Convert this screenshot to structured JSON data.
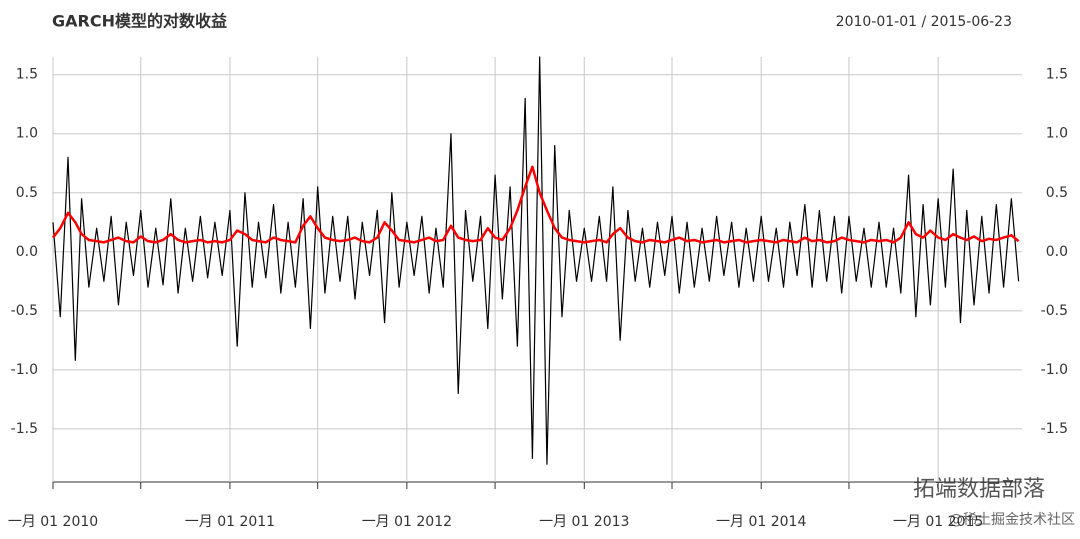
{
  "chart_data": {
    "type": "line",
    "title": "GARCH模型的对数收益",
    "subtitle": "2010-01-01 / 2015-06-23",
    "annotations": [
      "拓端数据部落",
      "@稀土掘金技术社区"
    ],
    "xlim": [
      "2010-01-01",
      "2015-06-23"
    ],
    "xticks": [
      {
        "value": "2010-01-01",
        "label": "一月 01 2010"
      },
      {
        "value": "2010-07-01",
        "label": null
      },
      {
        "value": "2011-01-01",
        "label": "一月 01 2011"
      },
      {
        "value": "2011-07-01",
        "label": null
      },
      {
        "value": "2012-01-01",
        "label": "一月 01 2012"
      },
      {
        "value": "2012-07-01",
        "label": null
      },
      {
        "value": "2013-01-01",
        "label": "一月 01 2013"
      },
      {
        "value": "2013-07-01",
        "label": null
      },
      {
        "value": "2014-01-01",
        "label": "一月 01 2014"
      },
      {
        "value": "2014-07-01",
        "label": null
      },
      {
        "value": "2015-01-01",
        "label": "一月 01 2015"
      }
    ],
    "ylim": [
      -1.95,
      1.65
    ],
    "yticks": [
      1.5,
      {
        "value": 1,
        "label": "1.0"
      },
      0.5,
      {
        "value": 0,
        "label": "0.0"
      },
      -0.5,
      {
        "value": -1,
        "label": "-1.0"
      },
      -1.5
    ],
    "grid": true,
    "x": [
      "2010-01-01",
      "2010-01-16",
      "2010-02-01",
      "2010-02-16",
      "2010-03-01",
      "2010-03-16",
      "2010-04-01",
      "2010-04-16",
      "2010-05-01",
      "2010-05-16",
      "2010-06-01",
      "2010-06-16",
      "2010-07-01",
      "2010-07-16",
      "2010-08-01",
      "2010-08-16",
      "2010-09-01",
      "2010-09-16",
      "2010-10-01",
      "2010-10-16",
      "2010-11-01",
      "2010-11-16",
      "2010-12-01",
      "2010-12-16",
      "2011-01-01",
      "2011-01-16",
      "2011-02-01",
      "2011-02-16",
      "2011-03-01",
      "2011-03-16",
      "2011-04-01",
      "2011-04-16",
      "2011-05-01",
      "2011-05-16",
      "2011-06-01",
      "2011-06-16",
      "2011-07-01",
      "2011-07-16",
      "2011-08-01",
      "2011-08-16",
      "2011-09-01",
      "2011-09-16",
      "2011-10-01",
      "2011-10-16",
      "2011-11-01",
      "2011-11-16",
      "2011-12-01",
      "2011-12-16",
      "2012-01-01",
      "2012-01-16",
      "2012-02-01",
      "2012-02-16",
      "2012-03-01",
      "2012-03-16",
      "2012-04-01",
      "2012-04-16",
      "2012-05-01",
      "2012-05-16",
      "2012-06-01",
      "2012-06-16",
      "2012-07-01",
      "2012-07-16",
      "2012-08-01",
      "2012-08-16",
      "2012-09-01",
      "2012-09-16",
      "2012-10-01",
      "2012-10-16",
      "2012-11-01",
      "2012-11-16",
      "2012-12-01",
      "2012-12-16",
      "2013-01-01",
      "2013-01-16",
      "2013-02-01",
      "2013-02-16",
      "2013-03-01",
      "2013-03-16",
      "2013-04-01",
      "2013-04-16",
      "2013-05-01",
      "2013-05-16",
      "2013-06-01",
      "2013-06-16",
      "2013-07-01",
      "2013-07-16",
      "2013-08-01",
      "2013-08-16",
      "2013-09-01",
      "2013-09-16",
      "2013-10-01",
      "2013-10-16",
      "2013-11-01",
      "2013-11-16",
      "2013-12-01",
      "2013-12-16",
      "2014-01-01",
      "2014-01-16",
      "2014-02-01",
      "2014-02-16",
      "2014-03-01",
      "2014-03-16",
      "2014-04-01",
      "2014-04-16",
      "2014-05-01",
      "2014-05-16",
      "2014-06-01",
      "2014-06-16",
      "2014-07-01",
      "2014-07-16",
      "2014-08-01",
      "2014-08-16",
      "2014-09-01",
      "2014-09-16",
      "2014-10-01",
      "2014-10-16",
      "2014-11-01",
      "2014-11-16",
      "2014-12-01",
      "2014-12-16",
      "2015-01-01",
      "2015-01-16",
      "2015-02-01",
      "2015-02-16",
      "2015-03-01",
      "2015-03-16",
      "2015-04-01",
      "2015-04-16",
      "2015-05-01",
      "2015-05-16",
      "2015-06-01",
      "2015-06-16"
    ],
    "series": [
      {
        "color": "#000000",
        "width": 1.2,
        "values": [
          0.25,
          -0.55,
          0.8,
          -0.92,
          0.45,
          -0.3,
          0.2,
          -0.25,
          0.3,
          -0.45,
          0.25,
          -0.2,
          0.35,
          -0.3,
          0.2,
          -0.28,
          0.45,
          -0.35,
          0.2,
          -0.25,
          0.3,
          -0.22,
          0.25,
          -0.2,
          0.35,
          -0.8,
          0.5,
          -0.3,
          0.25,
          -0.22,
          0.4,
          -0.35,
          0.25,
          -0.3,
          0.45,
          -0.65,
          0.55,
          -0.35,
          0.3,
          -0.25,
          0.3,
          -0.4,
          0.25,
          -0.2,
          0.35,
          -0.6,
          0.5,
          -0.3,
          0.25,
          -0.2,
          0.3,
          -0.35,
          0.2,
          -0.3,
          1.0,
          -1.2,
          0.35,
          -0.25,
          0.3,
          -0.65,
          0.65,
          -0.4,
          0.55,
          -0.8,
          1.3,
          -1.75,
          1.65,
          -1.8,
          0.9,
          -0.55,
          0.35,
          -0.25,
          0.2,
          -0.25,
          0.3,
          -0.25,
          0.55,
          -0.75,
          0.35,
          -0.25,
          0.2,
          -0.3,
          0.25,
          -0.2,
          0.3,
          -0.35,
          0.25,
          -0.3,
          0.2,
          -0.25,
          0.3,
          -0.2,
          0.25,
          -0.3,
          0.2,
          -0.25,
          0.3,
          -0.25,
          0.2,
          -0.3,
          0.25,
          -0.2,
          0.4,
          -0.3,
          0.35,
          -0.25,
          0.3,
          -0.35,
          0.3,
          -0.25,
          0.2,
          -0.3,
          0.25,
          -0.3,
          0.2,
          -0.35,
          0.65,
          -0.55,
          0.4,
          -0.45,
          0.45,
          -0.3,
          0.7,
          -0.6,
          0.35,
          -0.45,
          0.3,
          -0.35,
          0.4,
          -0.3,
          0.45,
          -0.25
        ]
      },
      {
        "color": "#ff0000",
        "width": 2.5,
        "values": [
          0.12,
          0.2,
          0.33,
          0.25,
          0.15,
          0.1,
          0.09,
          0.08,
          0.1,
          0.12,
          0.09,
          0.08,
          0.13,
          0.09,
          0.08,
          0.1,
          0.15,
          0.1,
          0.08,
          0.09,
          0.1,
          0.08,
          0.09,
          0.08,
          0.1,
          0.18,
          0.15,
          0.1,
          0.09,
          0.08,
          0.12,
          0.1,
          0.09,
          0.08,
          0.22,
          0.3,
          0.2,
          0.12,
          0.1,
          0.09,
          0.1,
          0.12,
          0.09,
          0.08,
          0.12,
          0.25,
          0.18,
          0.1,
          0.09,
          0.08,
          0.1,
          0.12,
          0.09,
          0.1,
          0.22,
          0.12,
          0.1,
          0.09,
          0.1,
          0.2,
          0.12,
          0.1,
          0.2,
          0.35,
          0.55,
          0.72,
          0.5,
          0.35,
          0.2,
          0.12,
          0.1,
          0.09,
          0.08,
          0.09,
          0.1,
          0.08,
          0.15,
          0.2,
          0.12,
          0.09,
          0.08,
          0.1,
          0.09,
          0.08,
          0.1,
          0.12,
          0.09,
          0.1,
          0.08,
          0.09,
          0.1,
          0.08,
          0.09,
          0.1,
          0.08,
          0.09,
          0.1,
          0.09,
          0.08,
          0.1,
          0.09,
          0.08,
          0.12,
          0.09,
          0.1,
          0.08,
          0.09,
          0.12,
          0.1,
          0.09,
          0.08,
          0.1,
          0.09,
          0.1,
          0.08,
          0.12,
          0.25,
          0.15,
          0.12,
          0.18,
          0.12,
          0.1,
          0.15,
          0.12,
          0.1,
          0.13,
          0.09,
          0.11,
          0.1,
          0.12,
          0.14,
          0.09
        ]
      }
    ]
  }
}
